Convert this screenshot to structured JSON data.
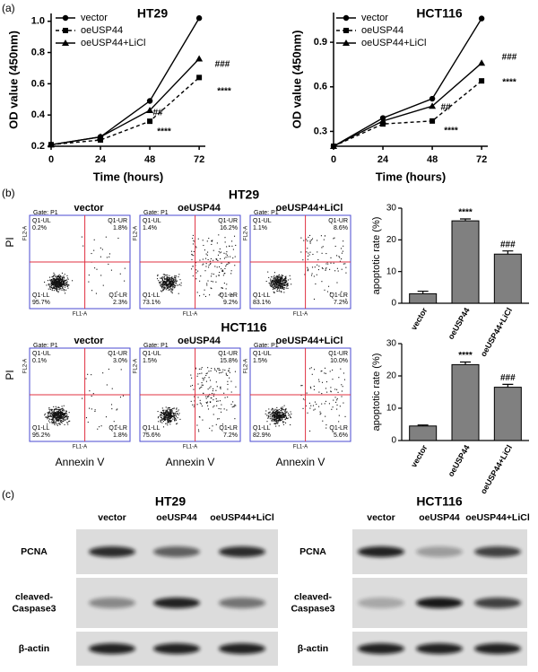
{
  "panel_labels": [
    "(a)",
    "(b)",
    "(c)"
  ],
  "chart_data": [
    {
      "type": "line",
      "title": "HT29",
      "xlabel": "Time (hours)",
      "ylabel": "OD value (450nm)",
      "x": [
        0,
        24,
        48,
        72
      ],
      "xlim": [
        0,
        75
      ],
      "xticks": [
        0,
        24,
        48,
        72
      ],
      "ylim": [
        0.2,
        1.05
      ],
      "yticks": [
        0.2,
        0.4,
        0.6,
        0.8,
        {
          "value": 1,
          "label": "1.0"
        }
      ],
      "series": [
        {
          "name": "vector",
          "color": "#000000",
          "marker": "circle",
          "line_style": "solid",
          "values": [
            0.21,
            0.26,
            0.49,
            1.02
          ]
        },
        {
          "name": "oeUSP44",
          "color": "#000000",
          "marker": "square",
          "line_style": "dashed",
          "values": [
            0.21,
            0.24,
            0.36,
            0.64
          ]
        },
        {
          "name": "oeUSP44+LiCl",
          "color": "#000000",
          "marker": "triangle",
          "line_style": "solid",
          "values": [
            0.21,
            0.26,
            0.43,
            0.76
          ]
        }
      ],
      "annotations": [
        "##",
        "###",
        "****",
        "****"
      ]
    },
    {
      "type": "line",
      "title": "HCT116",
      "xlabel": "Time (hours)",
      "ylabel": "OD value (450nm)",
      "x": [
        0,
        24,
        48,
        72
      ],
      "xlim": [
        0,
        75
      ],
      "xticks": [
        0,
        24,
        48,
        72
      ],
      "ylim": [
        0.2,
        1.1
      ],
      "yticks": [
        0.3,
        0.6,
        0.9
      ],
      "series": [
        {
          "name": "vector",
          "color": "#000000",
          "marker": "circle",
          "line_style": "solid",
          "values": [
            0.2,
            0.39,
            0.52,
            1.06
          ]
        },
        {
          "name": "oeUSP44",
          "color": "#000000",
          "marker": "square",
          "line_style": "dashed",
          "values": [
            0.2,
            0.35,
            0.37,
            0.64
          ]
        },
        {
          "name": "oeUSP44+LiCl",
          "color": "#000000",
          "marker": "triangle",
          "line_style": "solid",
          "values": [
            0.2,
            0.37,
            0.47,
            0.76
          ]
        }
      ],
      "annotations": [
        "##",
        "###",
        "****",
        "****"
      ]
    },
    {
      "type": "bar",
      "ylabel": "apoptotic rate (%)",
      "categories": [
        "vector",
        "oeUSP44",
        "oeUSP44+LiCl"
      ],
      "values": [
        3.0,
        26.0,
        15.5
      ],
      "errors": [
        0.8,
        0.6,
        1.0
      ],
      "color": "#808080",
      "ylim": [
        0,
        30
      ],
      "yticks": [
        0,
        10,
        20,
        30
      ],
      "annotations": [
        "****",
        "###"
      ]
    },
    {
      "type": "bar",
      "ylabel": "apoptotic rate (%)",
      "categories": [
        "vector",
        "oeUSP44",
        "oeUSP44+LiCl"
      ],
      "values": [
        4.5,
        23.5,
        16.5
      ],
      "errors": [
        0.3,
        0.8,
        0.9
      ],
      "color": "#808080",
      "ylim": [
        0,
        30
      ],
      "yticks": [
        0,
        10,
        20,
        30
      ],
      "annotations": [
        "****",
        "###"
      ]
    }
  ],
  "flow": {
    "y_label": "PI",
    "x_label": "Annexin V",
    "axis_x": "FL1-A",
    "axis_y": "FL2-A",
    "quadrant_names": [
      "Q1-UL",
      "Q1-UR",
      "Q1-LL",
      "Q1-LR"
    ],
    "rows": [
      {
        "title": "HT29",
        "plots": [
          {
            "title": "vector",
            "gate": "Gate: P1",
            "percents": [
              "0.2%",
              "1.8%",
              "95.7%",
              "2.3%"
            ]
          },
          {
            "title": "oeUSP44",
            "gate": "Gate: P1",
            "percents": [
              "1.4%",
              "16.2%",
              "73.1%",
              "9.2%"
            ]
          },
          {
            "title": "oeUSP44+LiCl",
            "gate": "Gate: P1",
            "percents": [
              "1.1%",
              "8.6%",
              "83.1%",
              "7.2%"
            ]
          }
        ]
      },
      {
        "title": "HCT116",
        "plots": [
          {
            "title": "vector",
            "gate": "Gate: P1",
            "percents": [
              "0.1%",
              "3.0%",
              "95.2%",
              "1.8%"
            ]
          },
          {
            "title": "oeUSP44",
            "gate": "Gate: P1",
            "percents": [
              "1.5%",
              "15.8%",
              "75.6%",
              "7.2%"
            ]
          },
          {
            "title": "oeUSP44+LiCl",
            "gate": "Gate: P1",
            "percents": [
              "1.5%",
              "10.0%",
              "82.9%",
              "5.6%"
            ]
          }
        ]
      }
    ]
  },
  "blots": [
    {
      "title": "HT29",
      "lanes": [
        "vector",
        "oeUSP44",
        "oeUSP44+LiCl"
      ],
      "rows": [
        [
          "PCNA"
        ],
        [
          "cleaved-",
          "Caspase3"
        ],
        [
          "β-actin"
        ]
      ]
    },
    {
      "title": "HCT116",
      "lanes": [
        "vector",
        "oeUSP44",
        "oeUSP44+LiCl"
      ],
      "rows": [
        [
          "PCNA"
        ],
        [
          "cleaved-",
          "Caspase3"
        ],
        [
          "β-actin"
        ]
      ]
    }
  ]
}
